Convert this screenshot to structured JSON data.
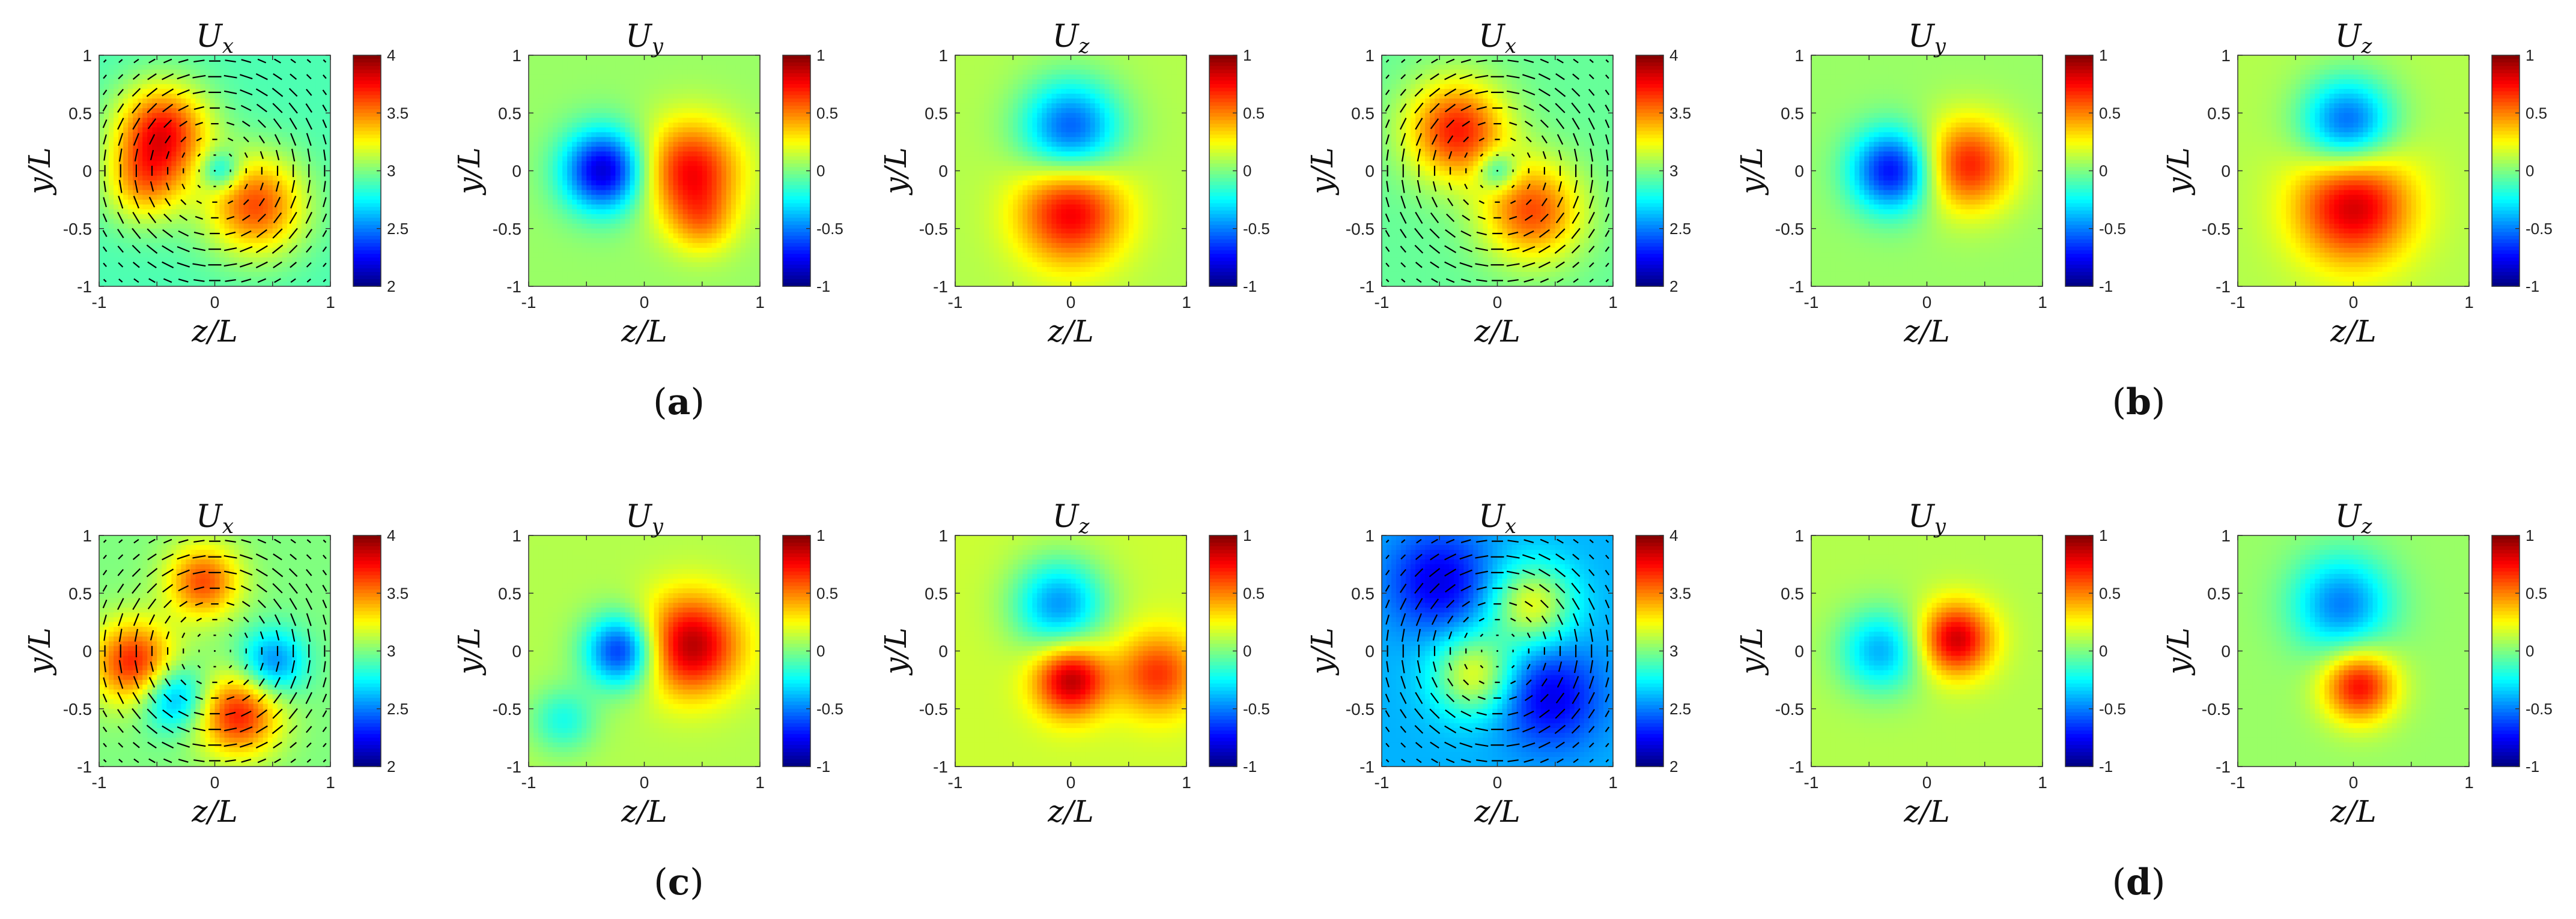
{
  "chart_data": [
    {
      "type": "heatmap",
      "panel": "a",
      "title": "U",
      "title_sub": "x",
      "xlabel": "z/L",
      "ylabel": "y/L",
      "xlim": [
        -1,
        1
      ],
      "ylim": [
        -1,
        1
      ],
      "xticks": [
        "-1",
        "-0.5",
        "0",
        "0.5",
        "1"
      ],
      "yticks": [
        "1",
        "0.5",
        "0",
        "-0.5",
        "-1"
      ],
      "xticks_shown": [
        "-1",
        "0",
        "1"
      ],
      "clim": [
        2,
        4
      ],
      "cticks": [
        "4",
        "3.5",
        "3",
        "2.5",
        "2"
      ],
      "base": 2.9,
      "features": [
        {
          "x": -0.45,
          "y": 0.35,
          "a": 0.8,
          "s": 0.28
        },
        {
          "x": 0.35,
          "y": -0.3,
          "a": 0.7,
          "s": 0.3
        },
        {
          "x": -0.6,
          "y": -0.1,
          "a": 0.5,
          "s": 0.25
        },
        {
          "x": 0.05,
          "y": 0.0,
          "a": -0.4,
          "s": 0.12
        }
      ],
      "vectors": true
    },
    {
      "type": "heatmap",
      "panel": "a",
      "title": "U",
      "title_sub": "y",
      "xlabel": "",
      "ylabel": "y/L",
      "xlim": [
        -1,
        1
      ],
      "ylim": [
        -1,
        1
      ],
      "xticks_shown": [
        "-1",
        "0",
        "1"
      ],
      "yticks": [
        "1",
        "0.5",
        "0",
        "-0.5",
        "-1"
      ],
      "clim": [
        -1,
        1
      ],
      "cticks": [
        "1",
        "0.5",
        "0",
        "-0.5",
        "-1"
      ],
      "base": 0.05,
      "features": [
        {
          "x": -0.35,
          "y": 0.0,
          "a": -0.9,
          "s": 0.25
        },
        {
          "x": 0.4,
          "y": 0.0,
          "a": 0.7,
          "s": 0.3
        },
        {
          "x": 0.5,
          "y": -0.45,
          "a": 0.3,
          "s": 0.2
        }
      ],
      "vectors": false
    },
    {
      "type": "heatmap",
      "panel": "a",
      "title": "U",
      "title_sub": "z",
      "xlabel": "",
      "ylabel": "",
      "xlim": [
        -1,
        1
      ],
      "ylim": [
        -1,
        1
      ],
      "xticks_shown": [
        "-1",
        "0",
        "1"
      ],
      "yticks": [
        "1",
        "0.5",
        "0",
        "-0.5",
        "-1"
      ],
      "clim": [
        -1,
        1
      ],
      "cticks": [
        "1",
        "0.5",
        "0",
        "-0.5",
        "-1"
      ],
      "base": 0.1,
      "features": [
        {
          "x": 0.0,
          "y": 0.35,
          "a": -0.7,
          "s": 0.3
        },
        {
          "x": 0.0,
          "y": -0.35,
          "a": 0.7,
          "s": 0.32
        }
      ],
      "vectors": false
    },
    {
      "type": "heatmap",
      "panel": "b",
      "title": "U",
      "title_sub": "x",
      "xlabel": "",
      "ylabel": "",
      "xlim": [
        -1,
        1
      ],
      "ylim": [
        -1,
        1
      ],
      "xticks_shown": [
        "-1",
        "0",
        "1"
      ],
      "yticks": [
        "1",
        "0.5",
        "0",
        "-0.5",
        "-1"
      ],
      "clim": [
        2,
        4
      ],
      "cticks": [
        "4",
        "3.5",
        "3",
        "2.5",
        "2"
      ],
      "base": 2.95,
      "features": [
        {
          "x": -0.35,
          "y": 0.35,
          "a": 0.75,
          "s": 0.3
        },
        {
          "x": 0.3,
          "y": -0.35,
          "a": 0.65,
          "s": 0.3
        },
        {
          "x": 0.0,
          "y": 0.0,
          "a": -0.4,
          "s": 0.12
        }
      ],
      "vectors": true
    },
    {
      "type": "heatmap",
      "panel": "b",
      "title": "U",
      "title_sub": "y",
      "xlabel": "",
      "ylabel": "",
      "xlim": [
        -1,
        1
      ],
      "ylim": [
        -1,
        1
      ],
      "xticks_shown": [
        "-1",
        "0",
        "1"
      ],
      "yticks": [
        "1",
        "0.5",
        "0",
        "-0.5",
        "-1"
      ],
      "clim": [
        -1,
        1
      ],
      "cticks": [
        "1",
        "0.5",
        "0",
        "-0.5",
        "-1"
      ],
      "base": 0.05,
      "features": [
        {
          "x": -0.3,
          "y": 0.0,
          "a": -0.8,
          "s": 0.25
        },
        {
          "x": 0.35,
          "y": 0.05,
          "a": 0.65,
          "s": 0.28
        }
      ],
      "vectors": false
    },
    {
      "type": "heatmap",
      "panel": "b",
      "title": "U",
      "title_sub": "z",
      "xlabel": "",
      "ylabel": "",
      "xlim": [
        -1,
        1
      ],
      "ylim": [
        -1,
        1
      ],
      "xticks_shown": [
        "-1",
        "0",
        "1"
      ],
      "yticks": [
        "1",
        "0.5",
        "0",
        "-0.5",
        "-1"
      ],
      "clim": [
        -1,
        1
      ],
      "cticks": [
        "1",
        "0.5",
        "0",
        "-0.5",
        "-1"
      ],
      "base": 0.1,
      "features": [
        {
          "x": -0.05,
          "y": 0.4,
          "a": -0.7,
          "s": 0.28
        },
        {
          "x": 0.0,
          "y": -0.3,
          "a": 0.75,
          "s": 0.35
        }
      ],
      "vectors": false
    },
    {
      "type": "heatmap",
      "panel": "c",
      "title": "U",
      "title_sub": "x",
      "xlabel": "",
      "ylabel": "",
      "xlim": [
        -1,
        1
      ],
      "ylim": [
        -1,
        1
      ],
      "xticks_shown": [
        "-1",
        "0",
        "1"
      ],
      "yticks": [
        "1",
        "0.5",
        "0",
        "-0.5",
        "-1"
      ],
      "clim": [
        2,
        4
      ],
      "cticks": [
        "4",
        "3.5",
        "3",
        "2.5",
        "2"
      ],
      "base": 3.0,
      "features": [
        {
          "x": -0.7,
          "y": -0.1,
          "a": 0.7,
          "s": 0.25
        },
        {
          "x": 0.2,
          "y": -0.55,
          "a": 0.7,
          "s": 0.25
        },
        {
          "x": -0.1,
          "y": 0.6,
          "a": 0.6,
          "s": 0.22
        },
        {
          "x": 0.5,
          "y": -0.1,
          "a": -0.5,
          "s": 0.2
        },
        {
          "x": -0.35,
          "y": -0.4,
          "a": -0.5,
          "s": 0.2
        }
      ],
      "vectors": true
    },
    {
      "type": "heatmap",
      "panel": "c",
      "title": "U",
      "title_sub": "y",
      "xlabel": "",
      "ylabel": "",
      "xlim": [
        -1,
        1
      ],
      "ylim": [
        -1,
        1
      ],
      "xticks_shown": [
        "-1",
        "0",
        "1"
      ],
      "yticks": [
        "1",
        "0.5",
        "0",
        "-0.5",
        "-1"
      ],
      "clim": [
        -1,
        1
      ],
      "cticks": [
        "1",
        "0.5",
        "0",
        "-0.5",
        "-1"
      ],
      "base": 0.1,
      "features": [
        {
          "x": -0.2,
          "y": 0.0,
          "a": -0.8,
          "s": 0.22
        },
        {
          "x": 0.4,
          "y": 0.05,
          "a": 0.8,
          "s": 0.3
        },
        {
          "x": -0.7,
          "y": -0.6,
          "a": -0.3,
          "s": 0.2
        }
      ],
      "vectors": false
    },
    {
      "type": "heatmap",
      "panel": "c",
      "title": "U",
      "title_sub": "z",
      "xlabel": "",
      "ylabel": "",
      "xlim": [
        -1,
        1
      ],
      "ylim": [
        -1,
        1
      ],
      "xticks_shown": [
        "-1",
        "0",
        "1"
      ],
      "yticks": [
        "1",
        "0.5",
        "0",
        "-0.5",
        "-1"
      ],
      "clim": [
        -1,
        1
      ],
      "cticks": [
        "1",
        "0.5",
        "0",
        "-0.5",
        "-1"
      ],
      "base": 0.15,
      "features": [
        {
          "x": -0.1,
          "y": 0.4,
          "a": -0.6,
          "s": 0.28
        },
        {
          "x": 0.0,
          "y": -0.25,
          "a": 0.75,
          "s": 0.22
        },
        {
          "x": 0.75,
          "y": -0.2,
          "a": 0.5,
          "s": 0.25
        }
      ],
      "vectors": false
    },
    {
      "type": "heatmap",
      "panel": "d",
      "title": "U",
      "title_sub": "x",
      "xlabel": "",
      "ylabel": "",
      "xlim": [
        -1,
        1
      ],
      "ylim": [
        -1,
        1
      ],
      "xticks_shown": [
        "-1",
        "0",
        "1"
      ],
      "yticks": [
        "1",
        "0.5",
        "0",
        "-0.5",
        "-1"
      ],
      "clim": [
        2,
        4
      ],
      "cticks": [
        "4",
        "3.5",
        "3",
        "2.5",
        "2"
      ],
      "base": 2.6,
      "features": [
        {
          "x": -0.5,
          "y": 0.6,
          "a": -0.4,
          "s": 0.3
        },
        {
          "x": 0.45,
          "y": -0.4,
          "a": -0.4,
          "s": 0.3
        },
        {
          "x": -0.2,
          "y": -0.2,
          "a": 0.6,
          "s": 0.25
        },
        {
          "x": 0.3,
          "y": 0.4,
          "a": 0.6,
          "s": 0.25
        }
      ],
      "vectors": true
    },
    {
      "type": "heatmap",
      "panel": "d",
      "title": "U",
      "title_sub": "y",
      "xlabel": "",
      "ylabel": "",
      "xlim": [
        -1,
        1
      ],
      "ylim": [
        -1,
        1
      ],
      "xticks_shown": [
        "-1",
        "0",
        "1"
      ],
      "yticks": [
        "1",
        "0.5",
        "0",
        "-0.5",
        "-1"
      ],
      "clim": [
        -1,
        1
      ],
      "cticks": [
        "1",
        "0.5",
        "0",
        "-0.5",
        "-1"
      ],
      "base": 0.1,
      "features": [
        {
          "x": -0.4,
          "y": 0.0,
          "a": -0.5,
          "s": 0.25
        },
        {
          "x": 0.25,
          "y": 0.1,
          "a": 0.75,
          "s": 0.22
        }
      ],
      "vectors": false
    },
    {
      "type": "heatmap",
      "panel": "d",
      "title": "U",
      "title_sub": "z",
      "xlabel": "",
      "ylabel": "",
      "xlim": [
        -1,
        1
      ],
      "ylim": [
        -1,
        1
      ],
      "xticks_shown": [
        "-1",
        "0",
        "1"
      ],
      "yticks": [
        "1",
        "0.5",
        "0",
        "-0.5",
        "-1"
      ],
      "clim": [
        -1,
        1
      ],
      "cticks": [
        "1",
        "0.5",
        "0",
        "-0.5",
        "-1"
      ],
      "base": 0.05,
      "features": [
        {
          "x": -0.1,
          "y": 0.4,
          "a": -0.55,
          "s": 0.3
        },
        {
          "x": 0.05,
          "y": -0.3,
          "a": 0.7,
          "s": 0.22
        }
      ],
      "vectors": false
    }
  ],
  "axis_labels": {
    "x": "z/L",
    "y": "y/L"
  },
  "panel_labels": [
    {
      "id": "a",
      "text": "a"
    },
    {
      "id": "b",
      "text": "b"
    },
    {
      "id": "c",
      "text": "c"
    },
    {
      "id": "d",
      "text": "d"
    }
  ]
}
